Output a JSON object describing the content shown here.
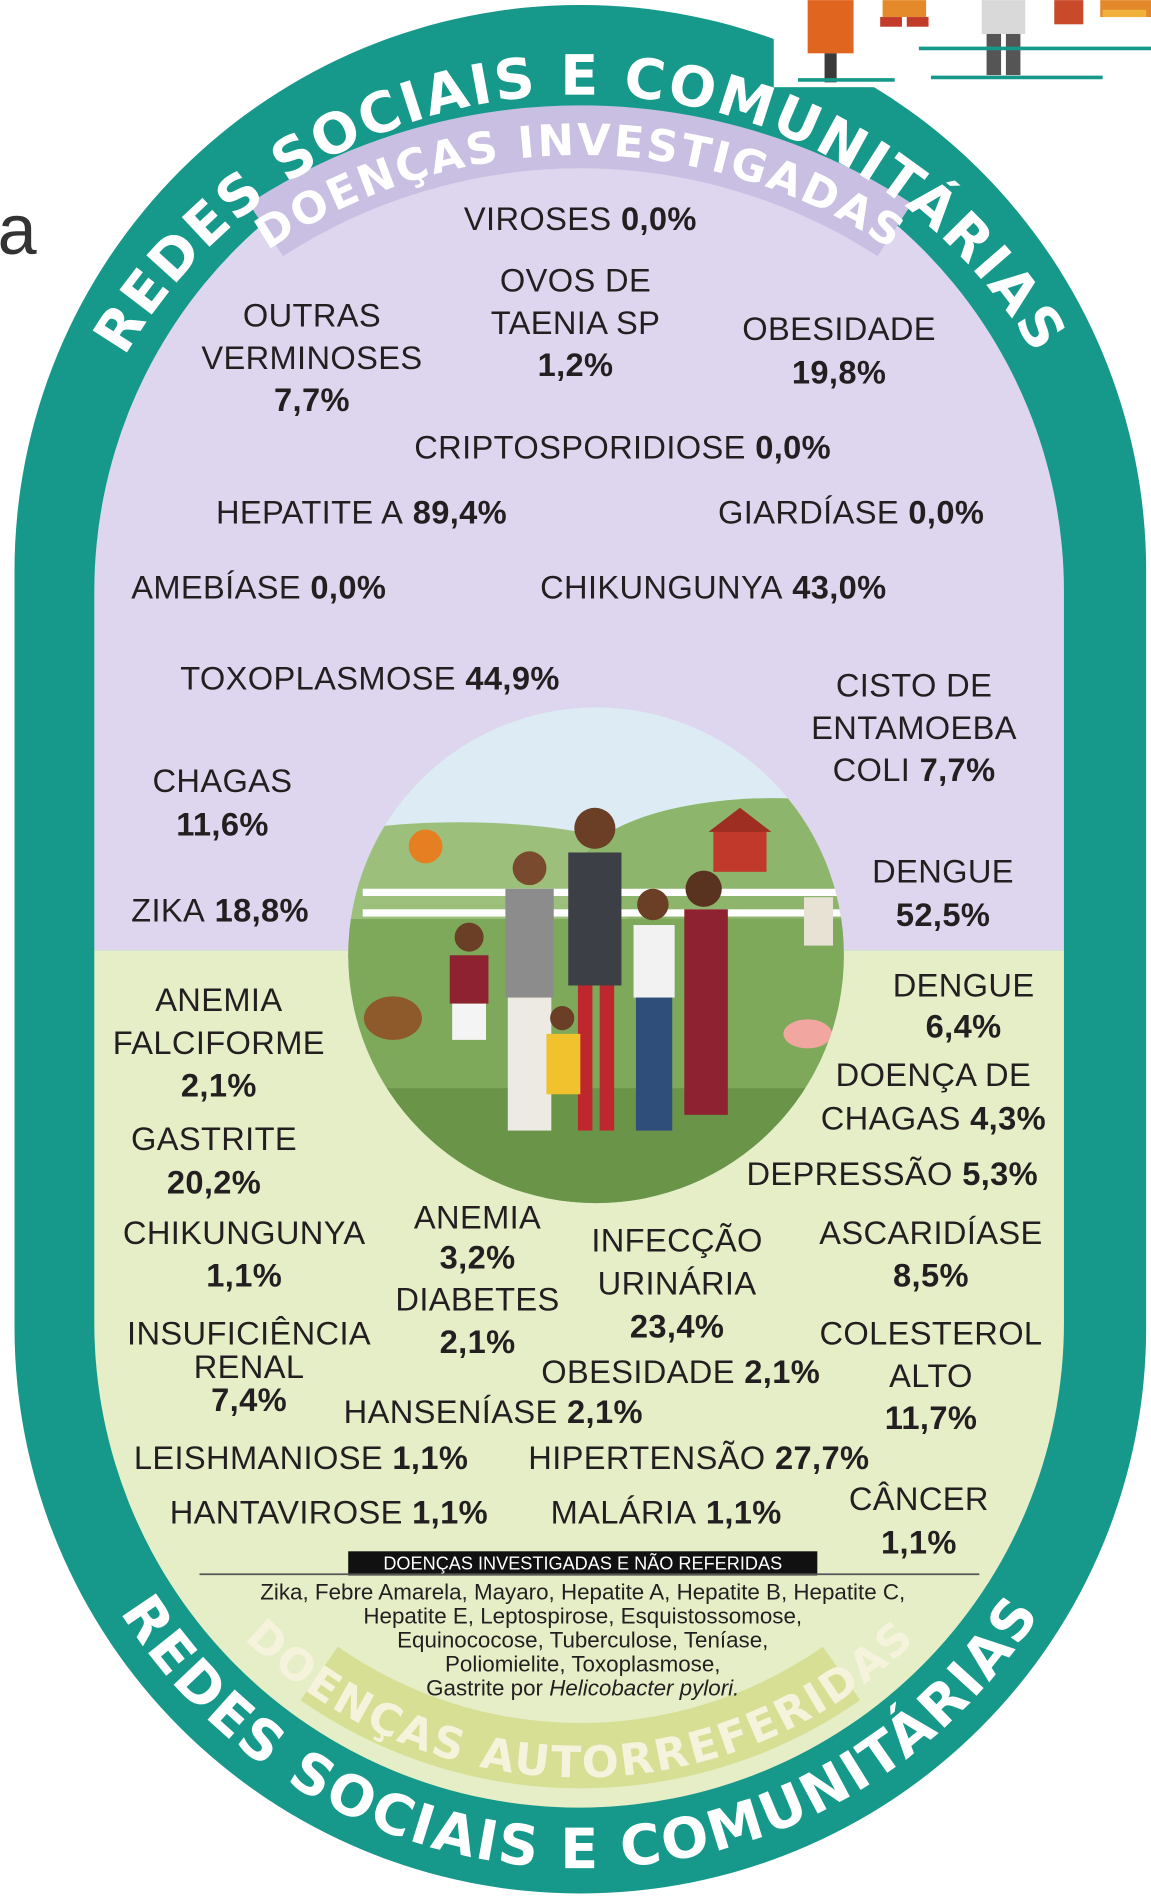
{
  "fragment": "a",
  "header": {
    "banner": "REDES SOCIAIS E COMUNITÁRIAS",
    "section": "DOENÇAS INVESTIGADAS"
  },
  "investigated": [
    {
      "name": [
        "VIROSES"
      ],
      "value": "0,0%"
    },
    {
      "name": [
        "OVOS DE",
        "TAENIA SP"
      ],
      "value": "1,2%"
    },
    {
      "name": [
        "OUTRAS",
        "VERMINOSES"
      ],
      "value": "7,7%"
    },
    {
      "name": [
        "OBESIDADE"
      ],
      "value": "19,8%"
    },
    {
      "name": [
        "CRIPTOSPORIDIOSE"
      ],
      "value": "0,0%"
    },
    {
      "name": [
        "HEPATITE A"
      ],
      "value": "89,4%"
    },
    {
      "name": [
        "GIARDÍASE"
      ],
      "value": "0,0%"
    },
    {
      "name": [
        "AMEBÍASE"
      ],
      "value": "0,0%"
    },
    {
      "name": [
        "CHIKUNGUNYA"
      ],
      "value": "43,0%"
    },
    {
      "name": [
        "TOXOPLASMOSE"
      ],
      "value": "44,9%"
    },
    {
      "name": [
        "CISTO DE",
        "ENTAMOEBA",
        "COLI"
      ],
      "value": "7,7%"
    },
    {
      "name": [
        "CHAGAS"
      ],
      "value": "11,6%"
    },
    {
      "name": [
        "DENGUE"
      ],
      "value": "52,5%"
    },
    {
      "name": [
        "ZIKA"
      ],
      "value": "18,8%"
    }
  ],
  "self_reported": [
    {
      "name": [
        "ANEMIA",
        "FALCIFORME"
      ],
      "value": "2,1%"
    },
    {
      "name": [
        "DENGUE"
      ],
      "value": "6,4%"
    },
    {
      "name": [
        "DOENÇA DE",
        "CHAGAS"
      ],
      "value": "4,3%"
    },
    {
      "name": [
        "GASTRITE"
      ],
      "value": "20,2%"
    },
    {
      "name": [
        "DEPRESSÃO"
      ],
      "value": "5,3%"
    },
    {
      "name": [
        "CHIKUNGUNYA"
      ],
      "value": "1,1%"
    },
    {
      "name": [
        "ANEMIA"
      ],
      "value": "3,2%"
    },
    {
      "name": [
        "INFECÇÃO",
        "URINÁRIA"
      ],
      "value": "23,4%"
    },
    {
      "name": [
        "ASCARIDÍASE"
      ],
      "value": "8,5%"
    },
    {
      "name": [
        "DIABETES"
      ],
      "value": "2,1%"
    },
    {
      "name": [
        "INSUFICIÊNCIA",
        "RENAL"
      ],
      "value": "7,4%"
    },
    {
      "name": [
        "COLESTEROL",
        "ALTO"
      ],
      "value": "11,7%"
    },
    {
      "name": [
        "OBESIDADE"
      ],
      "value": "2,1%"
    },
    {
      "name": [
        "HANSENÍASE"
      ],
      "value": "2,1%"
    },
    {
      "name": [
        "LEISHMANIOSE"
      ],
      "value": "1,1%"
    },
    {
      "name": [
        "HIPERTENSÃO"
      ],
      "value": "27,7%"
    },
    {
      "name": [
        "CÂNCER"
      ],
      "value": "1,1%"
    },
    {
      "name": [
        "HANTAVIROSE"
      ],
      "value": "1,1%"
    },
    {
      "name": [
        "MALÁRIA"
      ],
      "value": "1,1%"
    }
  ],
  "not_reported": {
    "title": "DOENÇAS INVESTIGADAS E NÃO REFERIDAS",
    "lines": [
      "Zika, Febre Amarela, Mayaro, Hepatite A, Hepatite B, Hepatite C,",
      "Hepatite E, Leptospirose, Esquistossomose,",
      "Equinococose, Tuberculose, Teníase,",
      "Poliomielite, Toxoplasmose,"
    ],
    "last_line": "Gastrite por",
    "last_line_italic": "Helicobacter pylori."
  },
  "footer": {
    "section": "DOENÇAS AUTORREFERIDAS",
    "banner": "REDES SOCIAIS E COMUNITÁRIAS"
  }
}
